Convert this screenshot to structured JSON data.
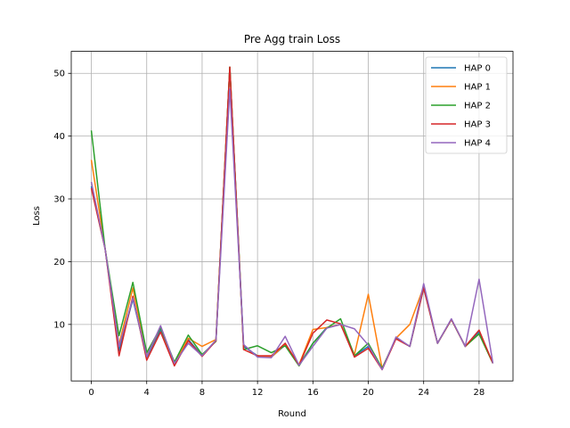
{
  "chart_data": {
    "type": "line",
    "title": "Pre Agg train Loss",
    "xlabel": "Round",
    "ylabel": "Loss",
    "xlim": [
      -1.45,
      30.45
    ],
    "ylim": [
      1.0,
      53.5
    ],
    "xticks": [
      0,
      4,
      8,
      12,
      16,
      20,
      24,
      28
    ],
    "yticks": [
      10,
      20,
      30,
      40,
      50
    ],
    "grid": true,
    "legend_position": "top-right",
    "x": [
      0,
      1,
      2,
      3,
      4,
      5,
      6,
      7,
      8,
      9,
      10,
      11,
      12,
      13,
      14,
      15,
      16,
      17,
      18,
      19,
      20,
      21,
      22,
      23,
      24,
      25,
      26,
      27,
      28,
      29
    ],
    "series": [
      {
        "name": "HAP 0",
        "color": "#1f77b4",
        "values": [
          32.0,
          22.0,
          5.8,
          14.0,
          4.8,
          9.2,
          3.8,
          7.6,
          5.0,
          7.5,
          51.0,
          6.5,
          5.0,
          4.8,
          6.7,
          3.5,
          7.0,
          9.5,
          10.0,
          5.0,
          6.5,
          3.0,
          7.8,
          6.5,
          15.8,
          7.0,
          10.8,
          6.5,
          8.8,
          3.8
        ]
      },
      {
        "name": "HAP 1",
        "color": "#ff7f0e",
        "values": [
          36.2,
          22.0,
          6.8,
          15.8,
          5.0,
          9.6,
          3.6,
          7.8,
          6.5,
          7.6,
          51.0,
          6.0,
          5.0,
          4.8,
          6.8,
          3.6,
          9.2,
          9.5,
          10.0,
          5.2,
          14.8,
          3.0,
          7.8,
          10.0,
          16.0,
          7.0,
          10.8,
          6.5,
          8.5,
          3.8
        ]
      },
      {
        "name": "HAP 2",
        "color": "#2ca02c",
        "values": [
          40.9,
          22.0,
          8.2,
          16.7,
          5.5,
          9.5,
          4.0,
          8.3,
          5.2,
          7.3,
          51.0,
          6.0,
          6.6,
          5.5,
          6.6,
          3.4,
          7.0,
          9.4,
          10.9,
          5.0,
          7.0,
          3.0,
          7.8,
          6.5,
          16.1,
          7.0,
          10.8,
          6.5,
          8.5,
          3.8
        ]
      },
      {
        "name": "HAP 3",
        "color": "#d62728",
        "values": [
          31.7,
          22.0,
          5.0,
          14.5,
          4.3,
          8.8,
          3.4,
          7.4,
          4.9,
          7.4,
          51.0,
          6.0,
          5.0,
          5.0,
          7.0,
          3.5,
          8.6,
          10.7,
          10.1,
          4.8,
          6.2,
          2.8,
          7.7,
          6.5,
          15.8,
          7.0,
          10.8,
          6.5,
          9.1,
          3.8
        ]
      },
      {
        "name": "HAP 4",
        "color": "#9467bd",
        "values": [
          32.7,
          22.0,
          6.5,
          14.2,
          4.9,
          9.8,
          3.8,
          7.0,
          5.0,
          7.5,
          47.5,
          6.8,
          4.8,
          4.7,
          8.1,
          3.5,
          6.5,
          9.4,
          10.0,
          9.3,
          6.7,
          2.8,
          8.0,
          6.5,
          16.5,
          7.0,
          10.9,
          6.5,
          17.2,
          3.8
        ]
      }
    ]
  }
}
